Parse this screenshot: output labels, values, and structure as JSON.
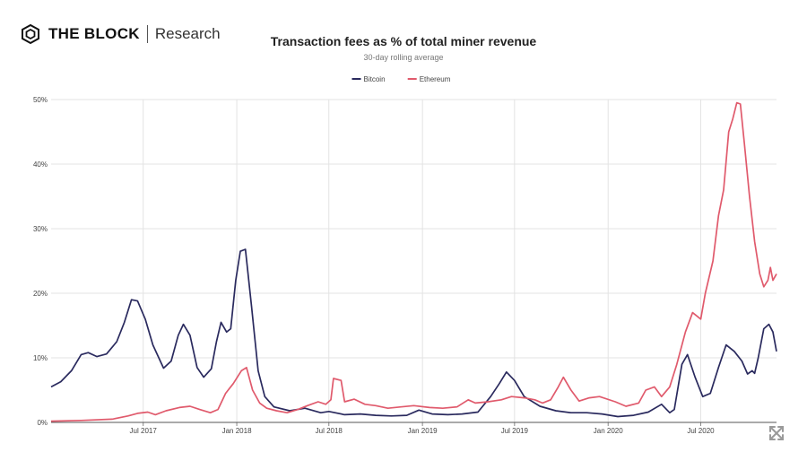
{
  "brand": {
    "name": "THE BLOCK",
    "sub": "Research",
    "icon": "cube-logo-icon"
  },
  "ui": {
    "expand_icon": "expand-icon"
  },
  "colors": {
    "bitcoin": "#2a2a5e",
    "ethereum": "#e05a6c",
    "grid": "#e3e3e3",
    "axis": "#555555"
  },
  "chart_data": {
    "type": "line",
    "title": "Transaction fees as % of total miner revenue",
    "subtitle": "30-day rolling average",
    "legend": {
      "placement": "top-center"
    },
    "grid": true,
    "xlabel": "",
    "ylabel": "",
    "x_range": [
      "2017-01-01",
      "2020-10-31"
    ],
    "ylim": [
      0,
      50
    ],
    "y_ticks": [
      {
        "value": 0,
        "label": "0%"
      },
      {
        "value": 10,
        "label": "10%"
      },
      {
        "value": 20,
        "label": "20%"
      },
      {
        "value": 30,
        "label": "30%"
      },
      {
        "value": 40,
        "label": "40%"
      },
      {
        "value": 50,
        "label": "50%"
      }
    ],
    "x_ticks": [
      {
        "date": "2017-07-01",
        "label": "Jul 2017"
      },
      {
        "date": "2018-01-01",
        "label": "Jan 2018"
      },
      {
        "date": "2018-07-01",
        "label": "Jul 2018"
      },
      {
        "date": "2019-01-01",
        "label": "Jan 2019"
      },
      {
        "date": "2019-07-01",
        "label": "Jul 2019"
      },
      {
        "date": "2020-01-01",
        "label": "Jan 2020"
      },
      {
        "date": "2020-07-01",
        "label": "Jul 2020"
      }
    ],
    "series": [
      {
        "name": "Bitcoin",
        "color": "#2a2a5e",
        "points": [
          [
            "2017-01-01",
            5.5
          ],
          [
            "2017-01-20",
            6.3
          ],
          [
            "2017-02-10",
            8.0
          ],
          [
            "2017-03-01",
            10.5
          ],
          [
            "2017-03-15",
            10.8
          ],
          [
            "2017-04-01",
            10.2
          ],
          [
            "2017-04-20",
            10.6
          ],
          [
            "2017-05-10",
            12.5
          ],
          [
            "2017-05-25",
            15.5
          ],
          [
            "2017-06-08",
            19.0
          ],
          [
            "2017-06-20",
            18.8
          ],
          [
            "2017-07-05",
            16.0
          ],
          [
            "2017-07-20",
            12.0
          ],
          [
            "2017-08-10",
            8.4
          ],
          [
            "2017-08-25",
            9.5
          ],
          [
            "2017-09-08",
            13.5
          ],
          [
            "2017-09-18",
            15.2
          ],
          [
            "2017-10-01",
            13.5
          ],
          [
            "2017-10-15",
            8.5
          ],
          [
            "2017-10-28",
            7.0
          ],
          [
            "2017-11-12",
            8.3
          ],
          [
            "2017-11-22",
            12.5
          ],
          [
            "2017-12-01",
            15.5
          ],
          [
            "2017-12-12",
            14.0
          ],
          [
            "2017-12-20",
            14.5
          ],
          [
            "2017-12-30",
            22.0
          ],
          [
            "2018-01-08",
            26.5
          ],
          [
            "2018-01-18",
            26.8
          ],
          [
            "2018-01-30",
            18.0
          ],
          [
            "2018-02-12",
            8.0
          ],
          [
            "2018-02-25",
            4.0
          ],
          [
            "2018-03-15",
            2.4
          ],
          [
            "2018-04-15",
            1.8
          ],
          [
            "2018-05-15",
            2.2
          ],
          [
            "2018-06-15",
            1.5
          ],
          [
            "2018-07-01",
            1.7
          ],
          [
            "2018-08-01",
            1.2
          ],
          [
            "2018-09-01",
            1.3
          ],
          [
            "2018-10-01",
            1.1
          ],
          [
            "2018-11-01",
            1.0
          ],
          [
            "2018-12-01",
            1.1
          ],
          [
            "2018-12-25",
            1.9
          ],
          [
            "2019-01-20",
            1.3
          ],
          [
            "2019-02-20",
            1.2
          ],
          [
            "2019-03-20",
            1.3
          ],
          [
            "2019-04-20",
            1.6
          ],
          [
            "2019-05-15",
            4.0
          ],
          [
            "2019-06-01",
            6.0
          ],
          [
            "2019-06-15",
            7.8
          ],
          [
            "2019-07-01",
            6.5
          ],
          [
            "2019-07-20",
            4.0
          ],
          [
            "2019-08-20",
            2.5
          ],
          [
            "2019-09-20",
            1.8
          ],
          [
            "2019-10-20",
            1.5
          ],
          [
            "2019-11-20",
            1.5
          ],
          [
            "2019-12-20",
            1.3
          ],
          [
            "2020-01-20",
            0.9
          ],
          [
            "2020-02-20",
            1.1
          ],
          [
            "2020-03-20",
            1.6
          ],
          [
            "2020-04-15",
            2.8
          ],
          [
            "2020-05-01",
            1.5
          ],
          [
            "2020-05-10",
            2.0
          ],
          [
            "2020-05-25",
            9.0
          ],
          [
            "2020-06-05",
            10.5
          ],
          [
            "2020-06-20",
            7.0
          ],
          [
            "2020-07-05",
            4.0
          ],
          [
            "2020-07-20",
            4.5
          ],
          [
            "2020-08-05",
            8.5
          ],
          [
            "2020-08-20",
            12.0
          ],
          [
            "2020-09-05",
            11.0
          ],
          [
            "2020-09-20",
            9.5
          ],
          [
            "2020-10-01",
            7.5
          ],
          [
            "2020-10-10",
            8.0
          ],
          [
            "2020-10-15",
            7.6
          ],
          [
            "2020-10-22",
            10.0
          ],
          [
            "2020-11-02",
            14.5
          ],
          [
            "2020-11-12",
            15.2
          ],
          [
            "2020-11-20",
            14.0
          ],
          [
            "2020-11-27",
            11.0
          ]
        ]
      },
      {
        "name": "Ethereum",
        "color": "#e05a6c",
        "points": [
          [
            "2017-01-01",
            0.2
          ],
          [
            "2017-03-01",
            0.3
          ],
          [
            "2017-05-01",
            0.5
          ],
          [
            "2017-06-01",
            1.0
          ],
          [
            "2017-06-20",
            1.4
          ],
          [
            "2017-07-10",
            1.6
          ],
          [
            "2017-07-25",
            1.2
          ],
          [
            "2017-08-15",
            1.8
          ],
          [
            "2017-09-10",
            2.3
          ],
          [
            "2017-10-01",
            2.5
          ],
          [
            "2017-10-20",
            2.0
          ],
          [
            "2017-11-10",
            1.5
          ],
          [
            "2017-11-25",
            2.0
          ],
          [
            "2017-12-10",
            4.5
          ],
          [
            "2017-12-25",
            6.0
          ],
          [
            "2018-01-10",
            8.0
          ],
          [
            "2018-01-20",
            8.5
          ],
          [
            "2018-02-01",
            5.0
          ],
          [
            "2018-02-15",
            3.0
          ],
          [
            "2018-03-01",
            2.2
          ],
          [
            "2018-03-20",
            1.8
          ],
          [
            "2018-04-10",
            1.5
          ],
          [
            "2018-05-01",
            2.0
          ],
          [
            "2018-05-20",
            2.6
          ],
          [
            "2018-06-10",
            3.2
          ],
          [
            "2018-06-25",
            2.8
          ],
          [
            "2018-07-05",
            3.5
          ],
          [
            "2018-07-10",
            6.8
          ],
          [
            "2018-07-25",
            6.5
          ],
          [
            "2018-08-01",
            3.2
          ],
          [
            "2018-08-20",
            3.6
          ],
          [
            "2018-09-10",
            2.8
          ],
          [
            "2018-10-01",
            2.6
          ],
          [
            "2018-10-25",
            2.2
          ],
          [
            "2018-11-20",
            2.4
          ],
          [
            "2018-12-15",
            2.6
          ],
          [
            "2019-01-15",
            2.3
          ],
          [
            "2019-02-10",
            2.2
          ],
          [
            "2019-03-10",
            2.4
          ],
          [
            "2019-04-01",
            3.5
          ],
          [
            "2019-04-15",
            3.0
          ],
          [
            "2019-05-10",
            3.2
          ],
          [
            "2019-06-05",
            3.5
          ],
          [
            "2019-06-25",
            4.0
          ],
          [
            "2019-07-20",
            3.8
          ],
          [
            "2019-08-10",
            3.5
          ],
          [
            "2019-08-25",
            3.0
          ],
          [
            "2019-09-10",
            3.5
          ],
          [
            "2019-09-25",
            5.5
          ],
          [
            "2019-10-05",
            7.0
          ],
          [
            "2019-10-20",
            5.0
          ],
          [
            "2019-11-05",
            3.3
          ],
          [
            "2019-11-25",
            3.8
          ],
          [
            "2019-12-15",
            4.0
          ],
          [
            "2020-01-15",
            3.2
          ],
          [
            "2020-02-05",
            2.5
          ],
          [
            "2020-03-01",
            3.0
          ],
          [
            "2020-03-15",
            5.0
          ],
          [
            "2020-04-01",
            5.5
          ],
          [
            "2020-04-15",
            4.0
          ],
          [
            "2020-05-01",
            5.5
          ],
          [
            "2020-05-15",
            9.0
          ],
          [
            "2020-06-01",
            14.0
          ],
          [
            "2020-06-15",
            17.0
          ],
          [
            "2020-07-01",
            16.0
          ],
          [
            "2020-07-10",
            20.0
          ],
          [
            "2020-07-25",
            25.0
          ],
          [
            "2020-08-05",
            32.0
          ],
          [
            "2020-08-15",
            36.0
          ],
          [
            "2020-08-25",
            45.0
          ],
          [
            "2020-09-02",
            47.0
          ],
          [
            "2020-09-10",
            49.5
          ],
          [
            "2020-09-17",
            49.3
          ],
          [
            "2020-09-25",
            43.0
          ],
          [
            "2020-10-05",
            35.0
          ],
          [
            "2020-10-15",
            28.0
          ],
          [
            "2020-10-25",
            23.0
          ],
          [
            "2020-11-02",
            21.0
          ],
          [
            "2020-11-10",
            22.0
          ],
          [
            "2020-11-15",
            24.0
          ],
          [
            "2020-11-20",
            22.0
          ],
          [
            "2020-11-27",
            23.0
          ]
        ]
      }
    ]
  }
}
